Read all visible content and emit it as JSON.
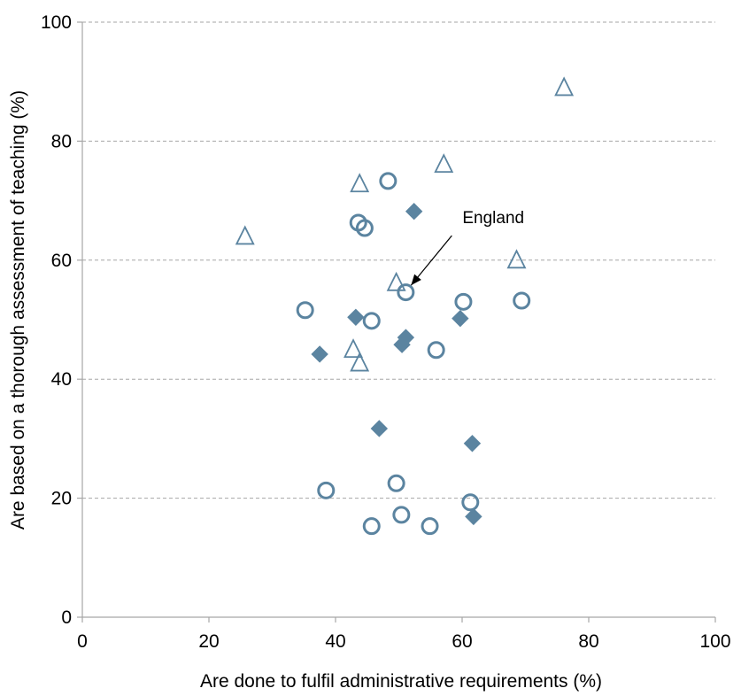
{
  "chart_data": {
    "type": "scatter",
    "title": "",
    "xlabel": "Are done to fulfil administrative requirements (%)",
    "ylabel": "Are based on a thorough assessment of teaching (%)",
    "xlim": [
      0,
      100
    ],
    "ylim": [
      0,
      100
    ],
    "x_ticks": [
      "0",
      "20",
      "40",
      "60",
      "80",
      "100"
    ],
    "y_ticks": [
      "0",
      "20",
      "40",
      "60",
      "80",
      "100"
    ],
    "grid": "horizontal dashed",
    "legend": "none",
    "colors": {
      "marker": "#5b84a0",
      "grid": "#a6a6a6",
      "axis": "#a6a6a6"
    },
    "series": [
      {
        "marker": "triangle-open",
        "points": [
          [
            76.1,
            89.0
          ],
          [
            57.1,
            76.1
          ],
          [
            43.8,
            72.8
          ],
          [
            25.7,
            64.0
          ],
          [
            68.6,
            60.0
          ],
          [
            49.6,
            56.2
          ],
          [
            42.8,
            45.0
          ],
          [
            43.8,
            42.7
          ]
        ]
      },
      {
        "marker": "circle-open",
        "points": [
          [
            48.3,
            73.3
          ],
          [
            43.6,
            66.3
          ],
          [
            44.6,
            65.4
          ],
          [
            51.1,
            54.6
          ],
          [
            60.2,
            53.0
          ],
          [
            69.4,
            53.2
          ],
          [
            35.2,
            51.6
          ],
          [
            45.7,
            49.8
          ],
          [
            55.9,
            44.9
          ],
          [
            38.5,
            21.3
          ],
          [
            49.6,
            22.5
          ],
          [
            61.3,
            19.3
          ],
          [
            50.4,
            17.2
          ],
          [
            45.7,
            15.3
          ],
          [
            54.9,
            15.3
          ]
        ]
      },
      {
        "marker": "diamond-filled",
        "points": [
          [
            52.4,
            68.2
          ],
          [
            43.2,
            50.4
          ],
          [
            59.7,
            50.2
          ],
          [
            51.1,
            47.0
          ],
          [
            50.5,
            45.8
          ],
          [
            37.5,
            44.2
          ],
          [
            46.9,
            31.7
          ],
          [
            61.6,
            29.2
          ],
          [
            61.8,
            16.9
          ]
        ]
      }
    ],
    "annotations": [
      {
        "text": "England",
        "x": 51.1,
        "y": 54.6
      }
    ]
  }
}
